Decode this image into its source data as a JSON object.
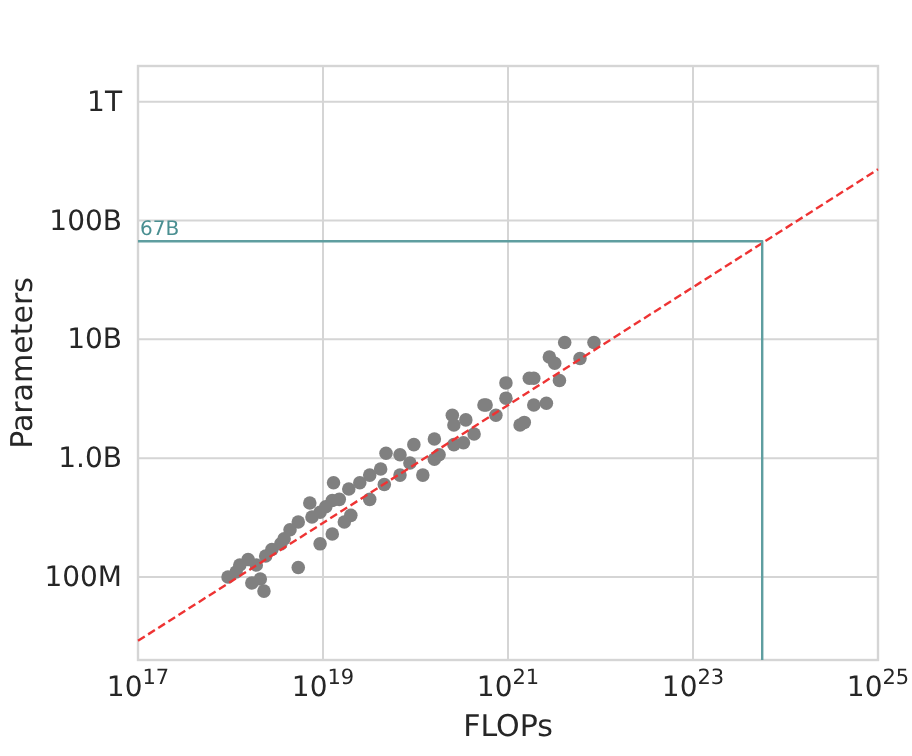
{
  "chart_data": {
    "type": "scatter",
    "xlabel": "FLOPs",
    "ylabel": "Parameters",
    "log": "xy",
    "grid": true,
    "xlim": [
      1e+17,
      1e+25
    ],
    "ylim": [
      20000000.0,
      2000000000000.0
    ],
    "xticks": [
      {
        "value": 1e+17,
        "label": "10$^{17}$"
      },
      {
        "value": 1e+19,
        "label": "10$^{19}$"
      },
      {
        "value": 1e+21,
        "label": "10$^{21}$"
      },
      {
        "value": 1e+23,
        "label": "10$^{23}$"
      },
      {
        "value": 1e+25,
        "label": "10$^{25}$"
      }
    ],
    "yticks": [
      {
        "value": 100000000.0,
        "label": "100M"
      },
      {
        "value": 1000000000.0,
        "label": "1.0B"
      },
      {
        "value": 10000000000.0,
        "label": "10B"
      },
      {
        "value": 100000000000.0,
        "label": "100B"
      },
      {
        "value": 1000000000000.0,
        "label": "1T"
      }
    ],
    "annotations": [
      {
        "text": "67B",
        "y": 67000000000.0
      }
    ],
    "series": [
      {
        "color": "#808080",
        "marker": "circle",
        "x": [
          9.4e+17,
          1.15e+18,
          1.26e+18,
          1.55e+18,
          1.7e+18,
          2.1e+18,
          2.3e+18,
          1.9e+18,
          2.4e+18,
          2.8e+18,
          3.5e+18,
          3.8e+18,
          4.4e+18,
          5.4e+18,
          7.2e+18,
          5.4e+18,
          7.6e+18,
          9.3e+18,
          1.07e+19,
          1.26e+19,
          9.3e+18,
          1.26e+19,
          1.7e+19,
          2e+19,
          1.3e+19,
          1.5e+19,
          1.9e+19,
          2.5e+19,
          3.2e+19,
          4.2e+19,
          4.8e+19,
          3.2e+19,
          4.6e+19,
          6.8e+19,
          1.2e+20,
          1.6e+20,
          2.6e+20,
          4.3e+20,
          5.8e+20,
          9.5e+20,
          1.35e+21,
          1.9e+21,
          2.6e+21,
          1.9e+21,
          3.2e+21,
          4.1e+21,
          8.5e+21,
          6e+21,
          3.6e+21,
          6.8e+19,
          9.6e+19,
          1.6e+20,
          2.6e+20,
          3.5e+20,
          5.5e+20,
          9.5e+20,
          7.4e+20,
          2.5e+20,
          2.8e+21,
          1.7e+21,
          1.5e+21,
          8.7e+19,
          1.8e+20,
          3.3e+20
        ],
        "values": [
          100000000.0,
          110000000.0,
          126000000.0,
          140000000.0,
          89000000.0,
          96000000.0,
          76000000.0,
          126000000.0,
          150000000.0,
          170000000.0,
          190000000.0,
          210000000.0,
          250000000.0,
          290000000.0,
          420000000.0,
          120000000.0,
          320000000.0,
          350000000.0,
          390000000.0,
          440000000.0,
          190000000.0,
          230000000.0,
          290000000.0,
          330000000.0,
          620000000.0,
          450000000.0,
          550000000.0,
          620000000.0,
          720000000.0,
          810000000.0,
          1100000000.0,
          450000000.0,
          600000000.0,
          720000000.0,
          720000000.0,
          980000000.0,
          1300000000.0,
          1600000000.0,
          2800000000.0,
          4300000000.0,
          1900000000.0,
          2800000000.0,
          2900000000.0,
          4700000000.0,
          6300000000.0,
          9400000000.0,
          9400000000.0,
          6900000000.0,
          4500000000.0,
          1070000000.0,
          1300000000.0,
          1450000000.0,
          1900000000.0,
          2100000000.0,
          2800000000.0,
          3200000000.0,
          2300000000.0,
          2300000000.0,
          7100000000.0,
          4700000000.0,
          2000000000.0,
          910000000.0,
          1070000000.0,
          1350000000.0
        ]
      },
      {
        "type": "line",
        "color": "#ee3333",
        "line_style": "dashed",
        "x": [
          1e+17,
          1e+25
        ],
        "values": [
          29000000.0,
          270000000000.0
        ]
      },
      {
        "type": "line",
        "color": "#5f9ea0",
        "line_style": "solid",
        "x": [
          1e+17,
          5.6e+23,
          5.6e+23
        ],
        "values": [
          67000000000.0,
          67000000000.0,
          20000000.0
        ]
      }
    ]
  }
}
